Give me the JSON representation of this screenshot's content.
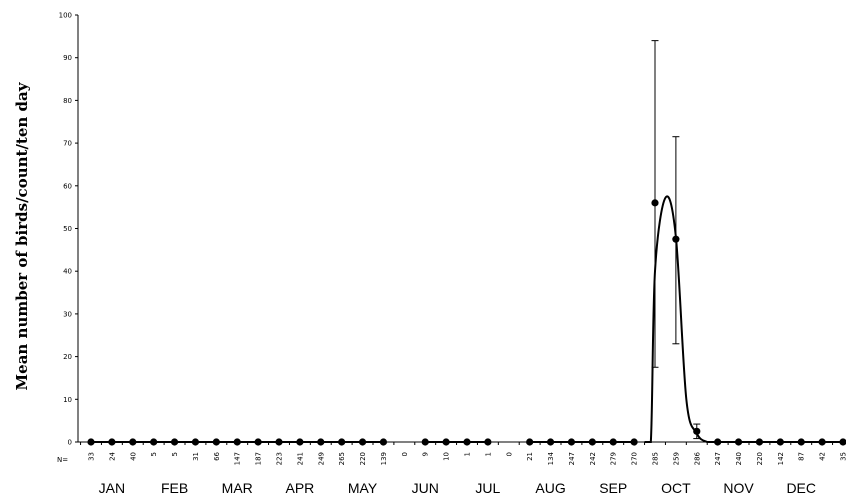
{
  "chart_data": {
    "type": "line",
    "ylabel": "Mean number of birds/count/ten day",
    "ylim": [
      0,
      100
    ],
    "yticks": [
      0,
      10,
      20,
      30,
      40,
      50,
      60,
      70,
      80,
      90,
      100
    ],
    "n_label": "N=",
    "months": [
      "JAN",
      "FEB",
      "MAR",
      "APR",
      "MAY",
      "JUN",
      "JUL",
      "AUG",
      "SEP",
      "OCT",
      "NOV",
      "DEC"
    ],
    "n_values": [
      "33",
      "24",
      "40",
      "5",
      "5",
      "31",
      "66",
      "147",
      "187",
      "223",
      "241",
      "249",
      "265",
      "220",
      "139",
      "0",
      "9",
      "10",
      "1",
      "1",
      "0",
      "21",
      "134",
      "247",
      "242",
      "279",
      "270",
      "285",
      "259",
      "286",
      "247",
      "240",
      "220",
      "142",
      "87",
      "42",
      "35"
    ],
    "y": [
      0,
      0,
      0,
      0,
      0,
      0,
      0,
      0,
      0,
      0,
      0,
      0,
      0,
      0,
      0,
      null,
      0,
      0,
      0,
      0,
      null,
      0,
      0,
      0,
      0,
      0,
      0,
      56,
      47.5,
      2.5,
      0,
      0,
      0,
      0,
      0,
      0,
      0
    ],
    "error_bars": [
      {
        "index": 27,
        "low": 17.5,
        "high": 94
      },
      {
        "index": 28,
        "low": 23,
        "high": 71.5
      },
      {
        "index": 29,
        "low": 0.8,
        "high": 4.2
      }
    ],
    "curve": [
      [
        26.5,
        0
      ],
      [
        26.8,
        0
      ],
      [
        27,
        40
      ],
      [
        27.5,
        57.2
      ],
      [
        28,
        48
      ],
      [
        28.5,
        10
      ],
      [
        29,
        2
      ],
      [
        29.5,
        0
      ],
      [
        30,
        0
      ]
    ],
    "grid": false,
    "legend": "none"
  }
}
